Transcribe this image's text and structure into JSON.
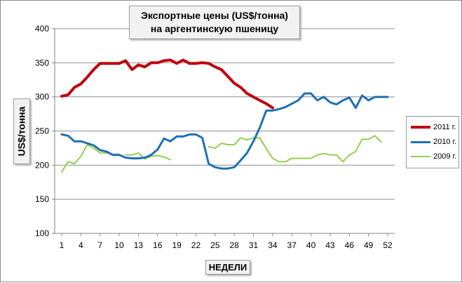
{
  "chart_data": {
    "type": "line",
    "title_line1": "Экспортные цены (US$/тонна)",
    "title_line2": "на аргентинскую пшеницу",
    "xlabel": "НЕДЕЛИ",
    "ylabel": "US$/тонна",
    "ylim": [
      100,
      400
    ],
    "yticks": [
      100,
      150,
      200,
      250,
      300,
      350,
      400
    ],
    "xlim": [
      1,
      52
    ],
    "xticks": [
      1,
      4,
      7,
      10,
      13,
      16,
      19,
      22,
      25,
      28,
      31,
      34,
      37,
      40,
      43,
      46,
      49,
      52
    ],
    "grid": true,
    "legend_position": "right",
    "series": [
      {
        "name": "2011 г.",
        "color": "#c0000e",
        "points": [
          [
            1,
            301
          ],
          [
            2,
            303
          ],
          [
            3,
            314
          ],
          [
            4,
            319
          ],
          [
            5,
            329
          ],
          [
            6,
            340
          ],
          [
            7,
            349
          ],
          [
            8,
            349
          ],
          [
            9,
            349
          ],
          [
            10,
            349
          ],
          [
            11,
            353
          ],
          [
            12,
            340
          ],
          [
            13,
            347
          ],
          [
            14,
            344
          ],
          [
            15,
            350
          ],
          [
            16,
            350
          ],
          [
            17,
            353
          ],
          [
            18,
            354
          ],
          [
            19,
            349
          ],
          [
            20,
            354
          ],
          [
            21,
            349
          ],
          [
            22,
            349
          ],
          [
            23,
            350
          ],
          [
            24,
            349
          ],
          [
            25,
            344
          ],
          [
            26,
            340
          ],
          [
            27,
            330
          ],
          [
            28,
            320
          ],
          [
            29,
            314
          ],
          [
            30,
            305
          ],
          [
            31,
            300
          ],
          [
            32,
            295
          ],
          [
            33,
            290
          ],
          [
            34,
            284
          ]
        ]
      },
      {
        "name": "2010 г.",
        "color": "#1f6fb5",
        "points": [
          [
            1,
            245
          ],
          [
            2,
            243
          ],
          [
            3,
            235
          ],
          [
            4,
            235
          ],
          [
            5,
            232
          ],
          [
            6,
            229
          ],
          [
            7,
            222
          ],
          [
            8,
            220
          ],
          [
            9,
            215
          ],
          [
            10,
            215
          ],
          [
            11,
            211
          ],
          [
            12,
            210
          ],
          [
            13,
            210
          ],
          [
            14,
            211
          ],
          [
            15,
            215
          ],
          [
            16,
            223
          ],
          [
            17,
            239
          ],
          [
            18,
            235
          ],
          [
            19,
            242
          ],
          [
            20,
            242
          ],
          [
            21,
            245
          ],
          [
            22,
            245
          ],
          [
            23,
            240
          ],
          [
            24,
            202
          ],
          [
            25,
            197
          ],
          [
            26,
            195
          ],
          [
            27,
            195
          ],
          [
            28,
            197
          ],
          [
            29,
            207
          ],
          [
            30,
            218
          ],
          [
            31,
            235
          ],
          [
            32,
            255
          ],
          [
            33,
            280
          ],
          [
            34,
            280
          ],
          [
            35,
            282
          ],
          [
            36,
            285
          ],
          [
            37,
            290
          ],
          [
            38,
            295
          ],
          [
            39,
            305
          ],
          [
            40,
            305
          ],
          [
            41,
            295
          ],
          [
            42,
            300
          ],
          [
            43,
            292
          ],
          [
            44,
            289
          ],
          [
            45,
            295
          ],
          [
            46,
            299
          ],
          [
            47,
            284
          ],
          [
            48,
            302
          ],
          [
            49,
            295
          ],
          [
            50,
            300
          ],
          [
            51,
            300
          ],
          [
            52,
            300
          ]
        ]
      },
      {
        "name": "2009 г.",
        "color": "#92d050",
        "segments": [
          [
            [
              1,
              190
            ],
            [
              2,
              205
            ],
            [
              3,
              202
            ],
            [
              4,
              213
            ],
            [
              5,
              230
            ],
            [
              6,
              225
            ],
            [
              7,
              218
            ],
            [
              8,
              218
            ],
            [
              9,
              216
            ],
            [
              10,
              216
            ]
          ],
          [
            [
              11,
              215
            ],
            [
              12,
              215
            ],
            [
              13,
              218
            ],
            [
              14,
              209
            ],
            [
              15,
              213
            ],
            [
              16,
              214
            ],
            [
              17,
              212
            ],
            [
              18,
              208
            ]
          ],
          [
            [
              24,
              227
            ],
            [
              25,
              225
            ],
            [
              26,
              232
            ],
            [
              27,
              230
            ],
            [
              28,
              230
            ],
            [
              29,
              240
            ],
            [
              30,
              237
            ],
            [
              31,
              240
            ],
            [
              32,
              240
            ],
            [
              33,
              224
            ],
            [
              34,
              210
            ],
            [
              35,
              205
            ],
            [
              36,
              205
            ],
            [
              37,
              210
            ],
            [
              38,
              210
            ],
            [
              39,
              210
            ],
            [
              40,
              210
            ],
            [
              41,
              215
            ],
            [
              42,
              217
            ],
            [
              43,
              215
            ],
            [
              44,
              215
            ],
            [
              45,
              205
            ],
            [
              46,
              215
            ],
            [
              47,
              220
            ],
            [
              48,
              238
            ],
            [
              49,
              238
            ],
            [
              50,
              243
            ],
            [
              51,
              234
            ]
          ]
        ]
      }
    ]
  }
}
